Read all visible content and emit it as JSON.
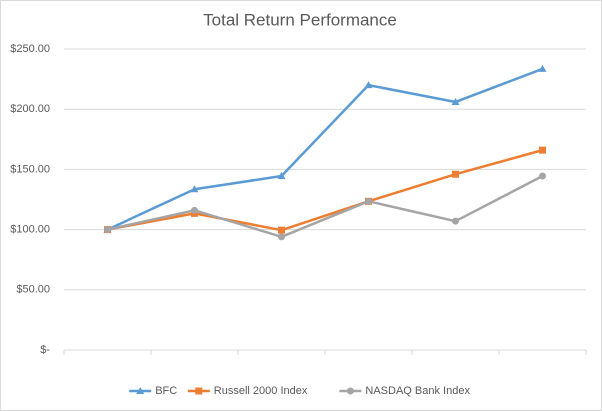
{
  "chart_data": {
    "type": "line",
    "title": "Total Return Performance",
    "categories": [
      null,
      null,
      null,
      null,
      null,
      null
    ],
    "series": [
      {
        "name": "BFC",
        "color": "#5b9bd5",
        "marker": "triangle",
        "values": [
          100,
          133.5,
          144.5,
          220,
          206,
          233.5
        ]
      },
      {
        "name": "Russell 2000 Index",
        "color": "#ed7d31",
        "marker": "square",
        "values": [
          100,
          113.5,
          99.5,
          123.5,
          146,
          166
        ]
      },
      {
        "name": "NASDAQ Bank Index",
        "color": "#a5a5a5",
        "marker": "circle",
        "values": [
          100,
          116,
          94,
          123.5,
          107,
          144.5
        ]
      }
    ],
    "ylim": [
      0,
      250
    ],
    "yticks": [
      {
        "value": 0,
        "label": "$-"
      },
      {
        "value": 50,
        "label": "$50.00"
      },
      {
        "value": 100,
        "label": "$100.00"
      },
      {
        "value": 150,
        "label": "$150.00"
      },
      {
        "value": 200,
        "label": "$200.00"
      },
      {
        "value": 250,
        "label": "$250.00"
      }
    ],
    "grid": true,
    "legend": "bottom"
  }
}
